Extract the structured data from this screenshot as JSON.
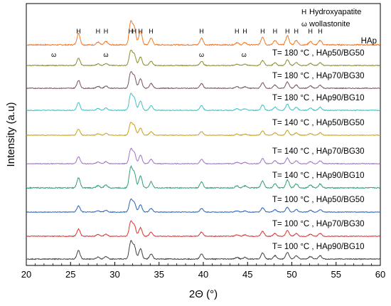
{
  "chart_data": {
    "type": "line",
    "xlabel": "2Θ (°)",
    "ylabel": "Intensity (a.u)",
    "xlim": [
      20,
      60
    ],
    "x_ticks": [
      20,
      25,
      30,
      35,
      40,
      45,
      50,
      55,
      60
    ],
    "y_ticks_shown": false,
    "legend": {
      "position": "top-right",
      "entries": [
        {
          "symbol": "H",
          "label": "Hydroxyapatite"
        },
        {
          "symbol": "ω",
          "label": "wollastonite"
        }
      ]
    },
    "series": [
      {
        "name": "HAp",
        "color": "#f07828",
        "peak_markers": [
          {
            "x": 25.9,
            "symbol": "H"
          },
          {
            "x": 28.1,
            "symbol": "H"
          },
          {
            "x": 29.0,
            "symbol": "H"
          },
          {
            "x": 31.8,
            "symbol": "H"
          },
          {
            "x": 32.2,
            "symbol": "H"
          },
          {
            "x": 32.9,
            "symbol": "H"
          },
          {
            "x": 34.1,
            "symbol": "H"
          },
          {
            "x": 39.8,
            "symbol": "H"
          },
          {
            "x": 43.8,
            "symbol": "H"
          },
          {
            "x": 44.7,
            "symbol": "H"
          },
          {
            "x": 46.7,
            "symbol": "H"
          },
          {
            "x": 48.1,
            "symbol": "H"
          },
          {
            "x": 49.5,
            "symbol": "H"
          },
          {
            "x": 50.5,
            "symbol": "H"
          },
          {
            "x": 52.1,
            "symbol": "H"
          },
          {
            "x": 53.2,
            "symbol": "H"
          }
        ]
      },
      {
        "name": "T= 180 °C , HAp50/BG50",
        "color": "#8a8a28",
        "peak_markers": [
          {
            "x": 23.1,
            "symbol": "ω"
          },
          {
            "x": 29.0,
            "symbol": "ω"
          },
          {
            "x": 39.8,
            "symbol": "ω"
          },
          {
            "x": 44.6,
            "symbol": "ω"
          }
        ]
      },
      {
        "name": "T= 180 °C , HAp70/BG30",
        "color": "#7a5060",
        "peak_markers": []
      },
      {
        "name": "T= 180 °C , HAp90/BG10",
        "color": "#40c0c8",
        "peak_markers": []
      },
      {
        "name": "T= 140 °C , HAp50/BG50",
        "color": "#c8a010",
        "peak_markers": []
      },
      {
        "name": "T= 140 °C , HAp70/BG30",
        "color": "#a070c8",
        "peak_markers": []
      },
      {
        "name": "T= 140 °C , HAp90/BG10",
        "color": "#30a070",
        "peak_markers": []
      },
      {
        "name": "T= 100 °C , HAp50/BG50",
        "color": "#2060c0",
        "peak_markers": []
      },
      {
        "name": "T= 100 °C , HAp70/BG30",
        "color": "#e03030",
        "peak_markers": []
      },
      {
        "name": "T= 100 °C , HAp90/BG10",
        "color": "#404040",
        "peak_markers": []
      }
    ],
    "peaks": [
      {
        "x": 25.9,
        "h": 0.5
      },
      {
        "x": 28.1,
        "h": 0.12
      },
      {
        "x": 29.0,
        "h": 0.15
      },
      {
        "x": 31.8,
        "h": 1.0
      },
      {
        "x": 32.2,
        "h": 0.75
      },
      {
        "x": 32.9,
        "h": 0.6
      },
      {
        "x": 34.1,
        "h": 0.3
      },
      {
        "x": 39.8,
        "h": 0.3
      },
      {
        "x": 43.8,
        "h": 0.1
      },
      {
        "x": 44.7,
        "h": 0.1
      },
      {
        "x": 46.7,
        "h": 0.35
      },
      {
        "x": 48.1,
        "h": 0.2
      },
      {
        "x": 49.5,
        "h": 0.4
      },
      {
        "x": 50.5,
        "h": 0.2
      },
      {
        "x": 52.1,
        "h": 0.15
      },
      {
        "x": 53.2,
        "h": 0.2
      }
    ]
  }
}
